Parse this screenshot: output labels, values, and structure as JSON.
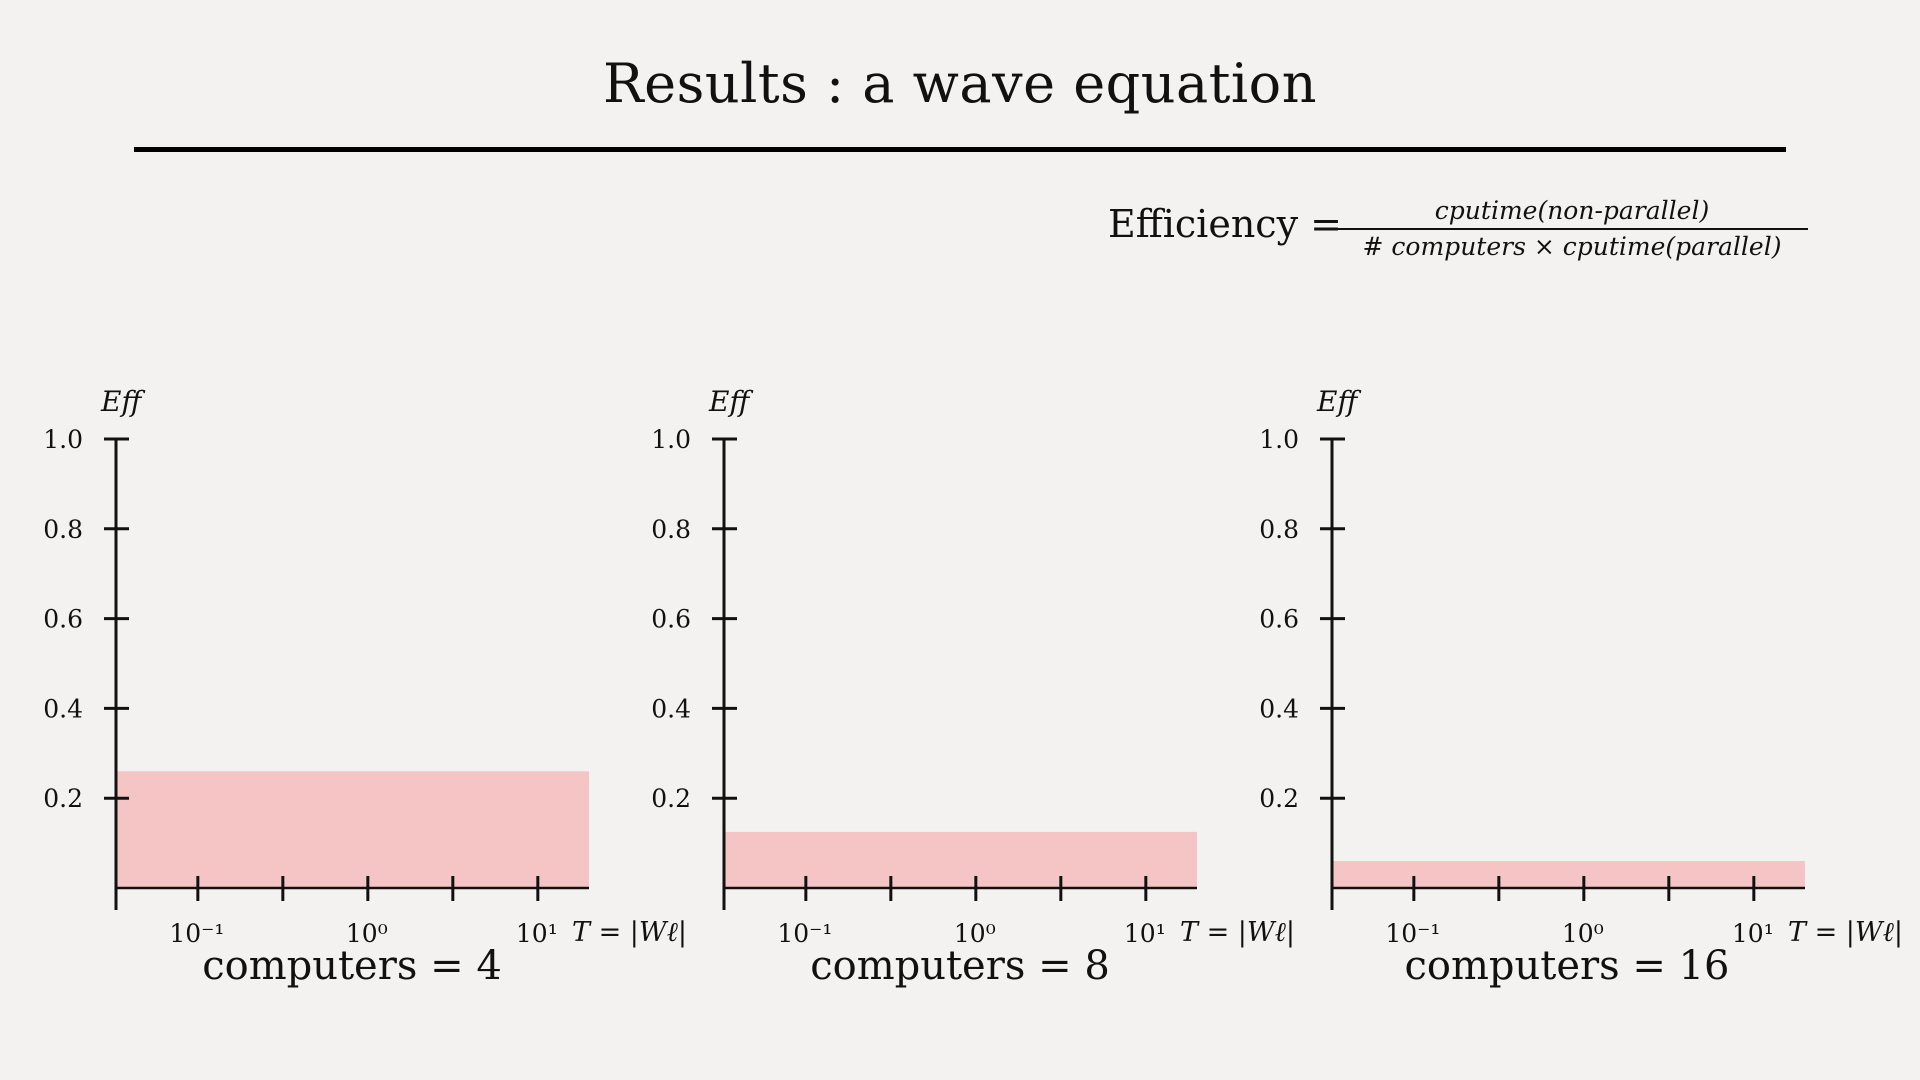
{
  "slide": {
    "title": "Results : a wave equation",
    "formula": {
      "lhs": "Efficiency =",
      "numerator": "cputime(non-parallel)",
      "denominator": "# computers × cputime(parallel)"
    }
  },
  "colors": {
    "background": "#f4f2f0",
    "bar_fill": "#f5c4c4",
    "axis": "#111111"
  },
  "chart_data": [
    {
      "type": "bar",
      "caption": "computers = 4",
      "ylabel": "Eff",
      "xlabel": "T = |Wℓ|",
      "x_scale": "log",
      "xlim": [
        0.033,
        20
      ],
      "ylim": [
        0,
        1.0
      ],
      "y_ticks": [
        0.2,
        0.4,
        0.6,
        0.8,
        1.0
      ],
      "x_tick_labels": [
        "10⁻¹",
        "10⁰",
        "10¹"
      ],
      "value": 0.26
    },
    {
      "type": "bar",
      "caption": "computers = 8",
      "ylabel": "Eff",
      "xlabel": "T = |Wℓ|",
      "x_scale": "log",
      "xlim": [
        0.033,
        20
      ],
      "ylim": [
        0,
        1.0
      ],
      "y_ticks": [
        0.2,
        0.4,
        0.6,
        0.8,
        1.0
      ],
      "x_tick_labels": [
        "10⁻¹",
        "10⁰",
        "10¹"
      ],
      "value": 0.125
    },
    {
      "type": "bar",
      "caption": "computers = 16",
      "ylabel": "Eff",
      "xlabel": "T = |Wℓ|",
      "x_scale": "log",
      "xlim": [
        0.033,
        20
      ],
      "ylim": [
        0,
        1.0
      ],
      "y_ticks": [
        0.2,
        0.4,
        0.6,
        0.8,
        1.0
      ],
      "x_tick_labels": [
        "10⁻¹",
        "10⁰",
        "10¹"
      ],
      "value": 0.06
    }
  ]
}
